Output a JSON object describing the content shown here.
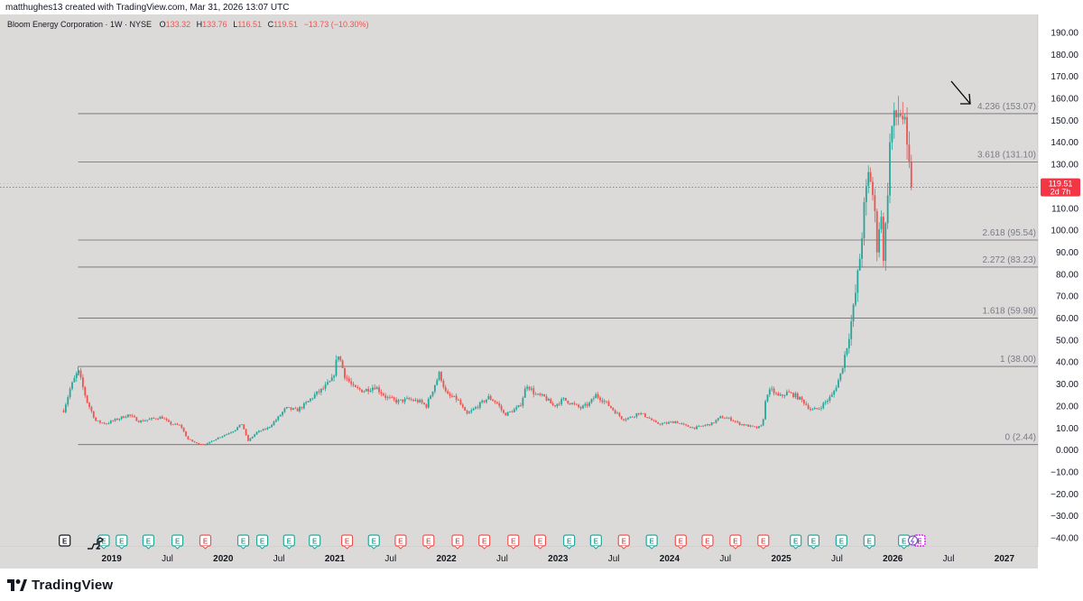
{
  "attribution": "matthughes13 created with TradingView.com, Mar 31, 2026 13:07 UTC",
  "header": {
    "symbol": "Bloom Energy Corporation · 1W · NYSE",
    "open_label": "O",
    "open": "133.32",
    "high_label": "H",
    "high": "133.76",
    "low_label": "L",
    "low": "116.51",
    "close_label": "C",
    "close": "119.51",
    "change": "−13.73 (−10.30%)"
  },
  "price_tag": {
    "value": "119.51",
    "countdown": "2d 7h"
  },
  "brand": "TradingView",
  "colors": {
    "background": "#dcdad9",
    "up": "#26a69a",
    "down": "#ef5350",
    "fib_line": "#6b6b6b",
    "current_price": "#f23645",
    "arrow": "#000000"
  },
  "chart_data": {
    "type": "candlestick",
    "interval": "1W",
    "ylim": [
      -40,
      190
    ],
    "y_ticks": [
      "190.00",
      "180.00",
      "170.00",
      "160.00",
      "150.00",
      "140.00",
      "130.00",
      "120.00",
      "110.00",
      "100.00",
      "90.00",
      "80.00",
      "70.00",
      "60.00",
      "50.00",
      "40.00",
      "30.00",
      "20.00",
      "10.00",
      "0.000",
      "−10.00",
      "−20.00",
      "−30.00",
      "−40.00"
    ],
    "y_tick_values": [
      190,
      180,
      170,
      160,
      150,
      140,
      130,
      120,
      110,
      100,
      90,
      80,
      70,
      60,
      50,
      40,
      30,
      20,
      10,
      0,
      -10,
      -20,
      -30,
      -40
    ],
    "x_labels": [
      {
        "t": 2019.0,
        "label": "2019"
      },
      {
        "t": 2019.5,
        "label": "Jul"
      },
      {
        "t": 2020.0,
        "label": "2020"
      },
      {
        "t": 2020.5,
        "label": "Jul"
      },
      {
        "t": 2021.0,
        "label": "2021"
      },
      {
        "t": 2021.5,
        "label": "Jul"
      },
      {
        "t": 2022.0,
        "label": "2022"
      },
      {
        "t": 2022.5,
        "label": "Jul"
      },
      {
        "t": 2023.0,
        "label": "2023"
      },
      {
        "t": 2023.5,
        "label": "Jul"
      },
      {
        "t": 2024.0,
        "label": "2024"
      },
      {
        "t": 2024.5,
        "label": "Jul"
      },
      {
        "t": 2025.0,
        "label": "2025"
      },
      {
        "t": 2025.5,
        "label": "Jul"
      },
      {
        "t": 2026.0,
        "label": "2026"
      },
      {
        "t": 2026.5,
        "label": "Jul"
      },
      {
        "t": 2027.0,
        "label": "2027"
      }
    ],
    "x_range": [
      2018.0,
      2027.3
    ],
    "current_price": 119.51,
    "fib_levels": [
      {
        "ratio": 4.236,
        "label": "4.236 (153.07)",
        "price": 153.07
      },
      {
        "ratio": 3.618,
        "label": "3.618 (131.10)",
        "price": 131.1
      },
      {
        "ratio": 2.618,
        "label": "2.618 (95.54)",
        "price": 95.54
      },
      {
        "ratio": 2.272,
        "label": "2.272 (83.23)",
        "price": 83.23
      },
      {
        "ratio": 1.618,
        "label": "1.618 (59.98)",
        "price": 59.98
      },
      {
        "ratio": 1,
        "label": "1 (38.00)",
        "price": 38.0
      },
      {
        "ratio": 0,
        "label": "0 (2.44)",
        "price": 2.44
      }
    ],
    "fib_start_t": 2018.7,
    "price_path": [
      [
        2018.57,
        18
      ],
      [
        2018.63,
        28
      ],
      [
        2018.7,
        36
      ],
      [
        2018.78,
        22
      ],
      [
        2018.86,
        13
      ],
      [
        2018.95,
        12
      ],
      [
        2019.05,
        14
      ],
      [
        2019.15,
        16
      ],
      [
        2019.25,
        13
      ],
      [
        2019.35,
        14
      ],
      [
        2019.45,
        15
      ],
      [
        2019.52,
        12
      ],
      [
        2019.62,
        11
      ],
      [
        2019.68,
        5
      ],
      [
        2019.76,
        3
      ],
      [
        2019.85,
        2.5
      ],
      [
        2019.93,
        5
      ],
      [
        2020.02,
        7
      ],
      [
        2020.1,
        9
      ],
      [
        2020.17,
        12
      ],
      [
        2020.22,
        4
      ],
      [
        2020.3,
        8
      ],
      [
        2020.4,
        10
      ],
      [
        2020.48,
        14
      ],
      [
        2020.56,
        19
      ],
      [
        2020.66,
        18
      ],
      [
        2020.74,
        21
      ],
      [
        2020.82,
        25
      ],
      [
        2020.9,
        28
      ],
      [
        2020.98,
        32
      ],
      [
        2021.03,
        44
      ],
      [
        2021.09,
        34
      ],
      [
        2021.17,
        28
      ],
      [
        2021.26,
        27
      ],
      [
        2021.36,
        29
      ],
      [
        2021.46,
        24
      ],
      [
        2021.56,
        22
      ],
      [
        2021.66,
        23
      ],
      [
        2021.76,
        22
      ],
      [
        2021.82,
        20
      ],
      [
        2021.89,
        29
      ],
      [
        2021.94,
        35
      ],
      [
        2022.0,
        25
      ],
      [
        2022.1,
        23
      ],
      [
        2022.18,
        16
      ],
      [
        2022.28,
        20
      ],
      [
        2022.38,
        24
      ],
      [
        2022.46,
        21
      ],
      [
        2022.52,
        16
      ],
      [
        2022.6,
        18
      ],
      [
        2022.66,
        20
      ],
      [
        2022.72,
        30
      ],
      [
        2022.8,
        25
      ],
      [
        2022.88,
        24
      ],
      [
        2022.96,
        20
      ],
      [
        2023.05,
        23
      ],
      [
        2023.13,
        21
      ],
      [
        2023.2,
        19
      ],
      [
        2023.28,
        21
      ],
      [
        2023.34,
        25
      ],
      [
        2023.42,
        22
      ],
      [
        2023.5,
        18
      ],
      [
        2023.58,
        14
      ],
      [
        2023.66,
        15
      ],
      [
        2023.72,
        17
      ],
      [
        2023.8,
        15
      ],
      [
        2023.88,
        12
      ],
      [
        2023.96,
        12
      ],
      [
        2024.05,
        13
      ],
      [
        2024.14,
        11
      ],
      [
        2024.22,
        10
      ],
      [
        2024.3,
        11
      ],
      [
        2024.38,
        12
      ],
      [
        2024.46,
        15
      ],
      [
        2024.55,
        14
      ],
      [
        2024.62,
        12
      ],
      [
        2024.7,
        11
      ],
      [
        2024.78,
        10
      ],
      [
        2024.83,
        11
      ],
      [
        2024.87,
        26
      ],
      [
        2024.92,
        27
      ],
      [
        2024.98,
        24
      ],
      [
        2025.05,
        26
      ],
      [
        2025.12,
        25
      ],
      [
        2025.2,
        22
      ],
      [
        2025.27,
        18
      ],
      [
        2025.34,
        19
      ],
      [
        2025.4,
        22
      ],
      [
        2025.46,
        25
      ],
      [
        2025.53,
        34
      ],
      [
        2025.6,
        50
      ],
      [
        2025.65,
        65
      ],
      [
        2025.7,
        85
      ],
      [
        2025.74,
        108
      ],
      [
        2025.79,
        128
      ],
      [
        2025.83,
        112
      ],
      [
        2025.86,
        92
      ],
      [
        2025.89,
        110
      ],
      [
        2025.92,
        86
      ],
      [
        2025.95,
        115
      ],
      [
        2025.98,
        145
      ],
      [
        2026.02,
        150
      ],
      [
        2026.06,
        155
      ],
      [
        2026.1,
        150
      ],
      [
        2026.13,
        133
      ],
      [
        2026.17,
        119.51
      ]
    ],
    "earnings": [
      {
        "t": 2018.58,
        "type": "neutral"
      },
      {
        "t": 2018.93,
        "type": "up"
      },
      {
        "t": 2019.09,
        "type": "up"
      },
      {
        "t": 2019.33,
        "type": "up"
      },
      {
        "t": 2019.59,
        "type": "up"
      },
      {
        "t": 2019.84,
        "type": "down"
      },
      {
        "t": 2020.18,
        "type": "up"
      },
      {
        "t": 2020.35,
        "type": "up"
      },
      {
        "t": 2020.59,
        "type": "up"
      },
      {
        "t": 2020.82,
        "type": "up"
      },
      {
        "t": 2021.11,
        "type": "down"
      },
      {
        "t": 2021.35,
        "type": "up"
      },
      {
        "t": 2021.59,
        "type": "down"
      },
      {
        "t": 2021.84,
        "type": "down"
      },
      {
        "t": 2022.1,
        "type": "down"
      },
      {
        "t": 2022.34,
        "type": "down"
      },
      {
        "t": 2022.6,
        "type": "down"
      },
      {
        "t": 2022.84,
        "type": "down"
      },
      {
        "t": 2023.1,
        "type": "up"
      },
      {
        "t": 2023.34,
        "type": "up"
      },
      {
        "t": 2023.59,
        "type": "down"
      },
      {
        "t": 2023.84,
        "type": "up"
      },
      {
        "t": 2024.1,
        "type": "down"
      },
      {
        "t": 2024.34,
        "type": "down"
      },
      {
        "t": 2024.59,
        "type": "down"
      },
      {
        "t": 2024.84,
        "type": "down"
      },
      {
        "t": 2025.13,
        "type": "up"
      },
      {
        "t": 2025.29,
        "type": "up"
      },
      {
        "t": 2025.54,
        "type": "up"
      },
      {
        "t": 2025.79,
        "type": "up"
      },
      {
        "t": 2026.1,
        "type": "up"
      },
      {
        "t": 2026.24,
        "type": "upcoming"
      }
    ],
    "event_label": "E",
    "split_marker_t": 2026.18
  }
}
